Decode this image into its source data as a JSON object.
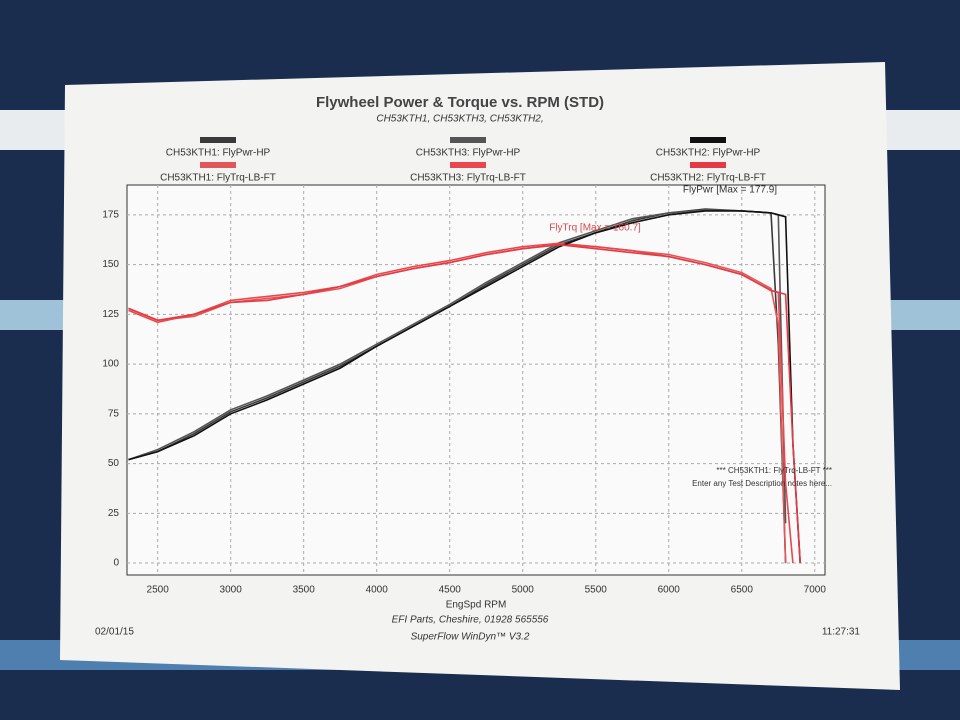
{
  "chart_data": {
    "type": "line",
    "title": "Flywheel Power & Torque vs. RPM (STD)",
    "subtitle": "CH53KTH1, CH53KTH3, CH53KTH2,",
    "x_label": "EngSpd RPM",
    "annotations": [
      "FlyPwr [Max = 177.9]",
      "FlyTrq [Max = 160.7]"
    ],
    "notes": [
      "*** CH53KTH1: FlyTrq-LB-FT ***",
      "Enter any Test Description notes here..."
    ],
    "x": [
      2300,
      2500,
      2750,
      3000,
      3250,
      3500,
      3750,
      4000,
      4250,
      4500,
      4750,
      5000,
      5250,
      5500,
      5750,
      6000,
      6250,
      6500,
      6700,
      6750,
      6800,
      6850,
      6900
    ],
    "series": [
      {
        "name": "CH53KTH1: FlyPwr-HP",
        "color": "#3a3a3a",
        "values": [
          52,
          56,
          65,
          76,
          83,
          91,
          99,
          109,
          119,
          129,
          140,
          150,
          160,
          166,
          172,
          176,
          177.9,
          177,
          176,
          110,
          0,
          null,
          null
        ]
      },
      {
        "name": "CH53KTH1: FlyTrq-LB-FT",
        "color": "#e0575a",
        "values": [
          128,
          122,
          124,
          131,
          133,
          135,
          138,
          144,
          148,
          151,
          155,
          158,
          160,
          159,
          157,
          155,
          151,
          146,
          138,
          120,
          0,
          null,
          null
        ]
      },
      {
        "name": "CH53KTH3: FlyPwr-HP",
        "color": "#555555",
        "values": [
          52,
          57,
          66,
          77,
          84,
          92,
          100,
          110,
          120,
          130,
          141,
          151,
          161,
          167,
          173,
          176,
          177.5,
          177,
          176,
          175,
          20,
          null,
          null
        ]
      },
      {
        "name": "CH53KTH3: FlyTrq-LB-FT",
        "color": "#e8484d",
        "values": [
          127,
          121,
          125,
          132,
          134,
          136,
          139,
          145,
          149,
          152,
          156,
          159,
          160.7,
          159,
          157,
          154,
          150,
          145,
          137,
          136,
          40,
          0,
          null
        ]
      },
      {
        "name": "CH53KTH2: FlyPwr-HP",
        "color": "#111111",
        "values": [
          52,
          56,
          64,
          75,
          82,
          90,
          98,
          109,
          119,
          129,
          139,
          149,
          159,
          166,
          171,
          175,
          177,
          177,
          176,
          175,
          174,
          60,
          0
        ]
      },
      {
        "name": "CH53KTH2: FlyTrq-LB-FT",
        "color": "#e33a44",
        "values": [
          128,
          122,
          125,
          131,
          132,
          135,
          139,
          144,
          148,
          151,
          155,
          158,
          160,
          158,
          156,
          154,
          150,
          145,
          137,
          136,
          135,
          60,
          0
        ]
      }
    ],
    "xlim": [
      2290,
      7070
    ],
    "xticks": [
      2500,
      3000,
      3500,
      4000,
      4500,
      5000,
      5500,
      6000,
      6500,
      7000
    ],
    "ylim": [
      -6,
      190
    ],
    "yticks": [
      0,
      25,
      50,
      75,
      100,
      125,
      150,
      175
    ],
    "grid": true
  },
  "footer": {
    "date": "02/01/15",
    "company": "EFI Parts, Cheshire, 01928 565556",
    "software": "SuperFlow WinDyn™ V3.2",
    "time": "11:27:31"
  }
}
